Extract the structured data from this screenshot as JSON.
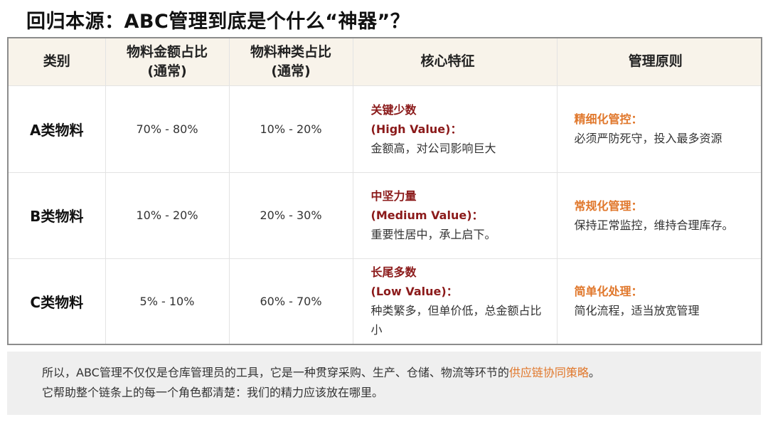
{
  "title": "回归本源：ABC管理到底是个什么“神器”？",
  "table": {
    "headers": {
      "category": "类别",
      "amount_ratio_line1": "物料金额占比",
      "amount_ratio_line2": "(通常)",
      "type_ratio_line1": "物料种类占比",
      "type_ratio_line2": "(通常)",
      "feature": "核心特征",
      "principle": "管理原则"
    },
    "rows": [
      {
        "category": "A类物料",
        "amount_ratio": "70% - 80%",
        "type_ratio": "10% - 20%",
        "feature_title": "关键少数",
        "feature_subtitle": "(High Value)：",
        "feature_desc": "金额高，对公司影响巨大",
        "principle_title": "精细化管控：",
        "principle_desc": "必须严防死守，投入最多资源"
      },
      {
        "category": "B类物料",
        "amount_ratio": "10% - 20%",
        "type_ratio": "20% - 30%",
        "feature_title": "中坚力量",
        "feature_subtitle": "(Medium Value)：",
        "feature_desc": "重要性居中，承上启下。",
        "principle_title": "常规化管理：",
        "principle_desc": "保持正常监控，维持合理库存。"
      },
      {
        "category": "C类物料",
        "amount_ratio": "5% - 10%",
        "type_ratio": "60% - 70%",
        "feature_title": "长尾多数",
        "feature_subtitle": "(Low Value)：",
        "feature_desc": "种类繁多，但单价低，总金额占比小",
        "principle_title": "简单化处理：",
        "principle_desc": "简化流程，适当放宽管理"
      }
    ]
  },
  "summary": {
    "line1_before": "所以，ABC管理不仅仅是仓库管理员的工具，它是一种贯穿采购、生产、仓储、物流等环节的",
    "line1_highlight": "供应链协同策略",
    "line1_after": "。",
    "line2": "它帮助整个链条上的每一个角色都清楚：我们的精力应该放在哪里。"
  },
  "colors": {
    "feature_accent": "#8b1a1a",
    "principle_accent": "#e0772b",
    "header_bg": "#f8f3ea",
    "summary_bg": "#efefef"
  }
}
